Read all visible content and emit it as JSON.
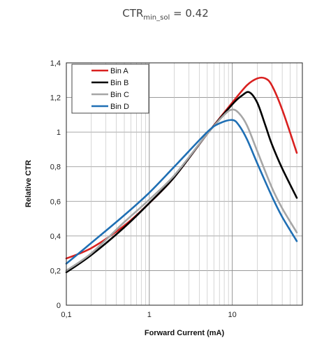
{
  "chart_data": {
    "type": "line",
    "title": {
      "main": "CTR",
      "sub": "min_sol",
      "rest": " = 0.42"
    },
    "xlabel": "Forward Current (mA)",
    "ylabel": "Relative CTR",
    "x_scale": "log",
    "xlim": [
      0.1,
      70
    ],
    "ylim": [
      0,
      1.4
    ],
    "x_ticks": [
      0.1,
      1,
      10
    ],
    "x_tick_labels": [
      "0,1",
      "1",
      "10"
    ],
    "y_ticks": [
      0,
      0.2,
      0.4,
      0.6,
      0.8,
      1,
      1.2,
      1.4
    ],
    "y_tick_labels": [
      "0",
      "0,2",
      "0,4",
      "0,6",
      "0,8",
      "1",
      "1,2",
      "1,4"
    ],
    "grid": true,
    "legend_position": "top-left",
    "series": [
      {
        "name": "Bin A",
        "color": "#d9201f",
        "x": [
          0.1,
          0.2,
          0.5,
          1,
          2,
          5,
          10,
          15,
          20,
          25,
          30,
          40,
          60
        ],
        "y": [
          0.27,
          0.33,
          0.46,
          0.59,
          0.74,
          0.99,
          1.17,
          1.27,
          1.31,
          1.31,
          1.27,
          1.13,
          0.88
        ]
      },
      {
        "name": "Bin B",
        "color": "#000000",
        "x": [
          0.1,
          0.2,
          0.5,
          1,
          2,
          5,
          10,
          13,
          16,
          20,
          25,
          30,
          40,
          60
        ],
        "y": [
          0.19,
          0.29,
          0.45,
          0.59,
          0.74,
          0.99,
          1.16,
          1.21,
          1.23,
          1.17,
          1.04,
          0.93,
          0.79,
          0.62
        ]
      },
      {
        "name": "Bin C",
        "color": "#a6a6a6",
        "x": [
          0.1,
          0.2,
          0.5,
          1,
          2,
          5,
          8,
          10,
          12,
          15,
          20,
          30,
          40,
          60
        ],
        "y": [
          0.2,
          0.3,
          0.48,
          0.61,
          0.75,
          0.99,
          1.1,
          1.13,
          1.11,
          1.04,
          0.89,
          0.68,
          0.56,
          0.42
        ]
      },
      {
        "name": "Bin D",
        "color": "#1f6fb4",
        "x": [
          0.1,
          0.2,
          0.5,
          1,
          2,
          5,
          7,
          10,
          12,
          15,
          20,
          30,
          40,
          60
        ],
        "y": [
          0.24,
          0.36,
          0.52,
          0.65,
          0.8,
          1.0,
          1.05,
          1.07,
          1.04,
          0.96,
          0.82,
          0.63,
          0.51,
          0.37
        ]
      }
    ]
  }
}
